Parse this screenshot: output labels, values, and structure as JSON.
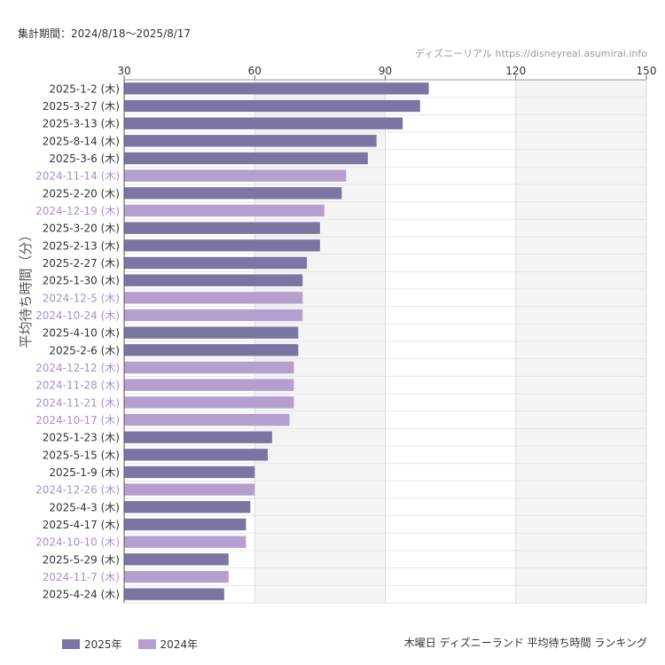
{
  "header": {
    "period": "集計期間：2024/8/18〜2025/8/17",
    "source": "ディズニーリアル https://disneyreal.asumirai.info"
  },
  "footer": {
    "title": "木曜日 ディズニーランド 平均待ち時間 ランキング"
  },
  "colors": {
    "series_2025": "#7b75a3",
    "series_2024": "#b49fcf"
  },
  "chart_data": {
    "type": "bar",
    "orientation": "horizontal",
    "ylabel": "平均待ち時間（分）",
    "xlim": [
      30,
      150
    ],
    "xticks": [
      "30",
      "60",
      "90",
      "120",
      "150"
    ],
    "legend": [
      {
        "name": "2025年",
        "key": "2025"
      },
      {
        "name": "2024年",
        "key": "2024"
      }
    ],
    "legend_position": "bottom-left",
    "bars": [
      {
        "label": "2025-1-2 (木)",
        "value": 100,
        "year": "2025"
      },
      {
        "label": "2025-3-27 (木)",
        "value": 98,
        "year": "2025"
      },
      {
        "label": "2025-3-13 (木)",
        "value": 94,
        "year": "2025"
      },
      {
        "label": "2025-8-14 (木)",
        "value": 88,
        "year": "2025"
      },
      {
        "label": "2025-3-6 (木)",
        "value": 86,
        "year": "2025"
      },
      {
        "label": "2024-11-14 (木)",
        "value": 81,
        "year": "2024"
      },
      {
        "label": "2025-2-20 (木)",
        "value": 80,
        "year": "2025"
      },
      {
        "label": "2024-12-19 (木)",
        "value": 76,
        "year": "2024"
      },
      {
        "label": "2025-3-20 (木)",
        "value": 75,
        "year": "2025"
      },
      {
        "label": "2025-2-13 (木)",
        "value": 75,
        "year": "2025"
      },
      {
        "label": "2025-2-27 (木)",
        "value": 72,
        "year": "2025"
      },
      {
        "label": "2025-1-30 (木)",
        "value": 71,
        "year": "2025"
      },
      {
        "label": "2024-12-5 (木)",
        "value": 71,
        "year": "2024"
      },
      {
        "label": "2024-10-24 (木)",
        "value": 71,
        "year": "2024"
      },
      {
        "label": "2025-4-10 (木)",
        "value": 70,
        "year": "2025"
      },
      {
        "label": "2025-2-6 (木)",
        "value": 70,
        "year": "2025"
      },
      {
        "label": "2024-12-12 (木)",
        "value": 69,
        "year": "2024"
      },
      {
        "label": "2024-11-28 (木)",
        "value": 69,
        "year": "2024"
      },
      {
        "label": "2024-11-21 (木)",
        "value": 69,
        "year": "2024"
      },
      {
        "label": "2024-10-17 (木)",
        "value": 68,
        "year": "2024"
      },
      {
        "label": "2025-1-23 (木)",
        "value": 64,
        "year": "2025"
      },
      {
        "label": "2025-5-15 (木)",
        "value": 63,
        "year": "2025"
      },
      {
        "label": "2025-1-9 (木)",
        "value": 60,
        "year": "2025"
      },
      {
        "label": "2024-12-26 (木)",
        "value": 60,
        "year": "2024"
      },
      {
        "label": "2025-4-3 (木)",
        "value": 59,
        "year": "2025"
      },
      {
        "label": "2025-4-17 (木)",
        "value": 58,
        "year": "2025"
      },
      {
        "label": "2024-10-10 (木)",
        "value": 58,
        "year": "2024"
      },
      {
        "label": "2025-5-29 (木)",
        "value": 54,
        "year": "2025"
      },
      {
        "label": "2024-11-7 (木)",
        "value": 54,
        "year": "2024"
      },
      {
        "label": "2025-4-24 (木)",
        "value": 53,
        "year": "2025"
      }
    ]
  }
}
